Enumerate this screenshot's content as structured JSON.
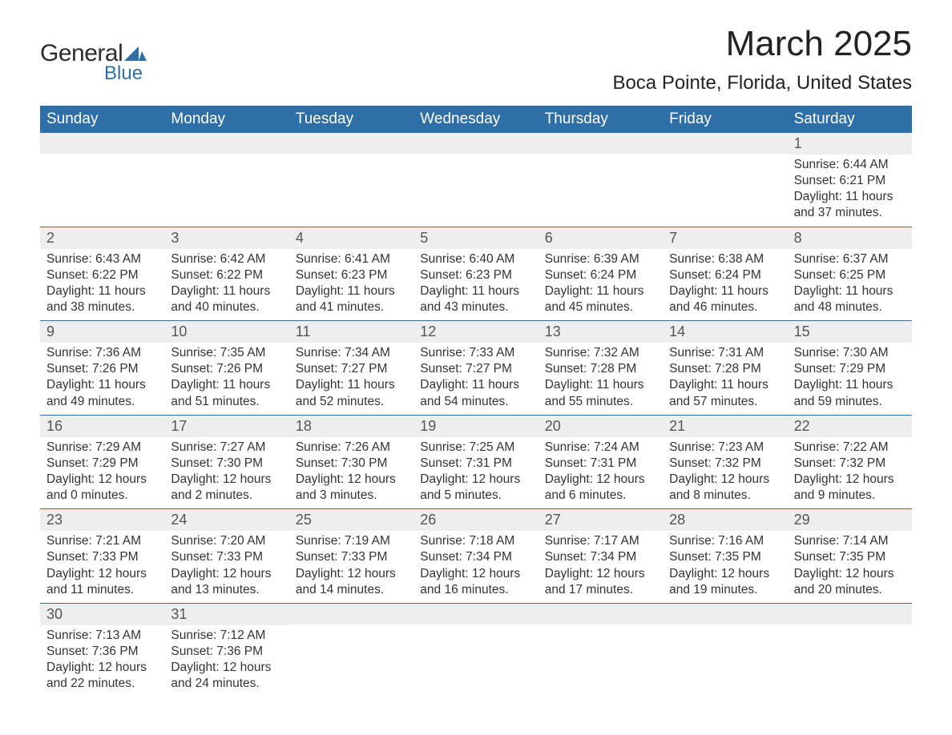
{
  "logo": {
    "text1": "General",
    "text2": "Blue",
    "mark_color": "#2f6fa7"
  },
  "title": "March 2025",
  "location": "Boca Pointe, Florida, United States",
  "weekdays": [
    "Sunday",
    "Monday",
    "Tuesday",
    "Wednesday",
    "Thursday",
    "Friday",
    "Saturday"
  ],
  "colors": {
    "header_bg": "#2f6fa7",
    "header_text": "#ffffff",
    "daynum_bg": "#eeeeee",
    "text": "#333333",
    "border": "#2f6fa7"
  },
  "weeks": [
    [
      {
        "day": "",
        "sunrise": "",
        "sunset": "",
        "daylight1": "",
        "daylight2": ""
      },
      {
        "day": "",
        "sunrise": "",
        "sunset": "",
        "daylight1": "",
        "daylight2": ""
      },
      {
        "day": "",
        "sunrise": "",
        "sunset": "",
        "daylight1": "",
        "daylight2": ""
      },
      {
        "day": "",
        "sunrise": "",
        "sunset": "",
        "daylight1": "",
        "daylight2": ""
      },
      {
        "day": "",
        "sunrise": "",
        "sunset": "",
        "daylight1": "",
        "daylight2": ""
      },
      {
        "day": "",
        "sunrise": "",
        "sunset": "",
        "daylight1": "",
        "daylight2": ""
      },
      {
        "day": "1",
        "sunrise": "Sunrise: 6:44 AM",
        "sunset": "Sunset: 6:21 PM",
        "daylight1": "Daylight: 11 hours",
        "daylight2": "and 37 minutes."
      }
    ],
    [
      {
        "day": "2",
        "sunrise": "Sunrise: 6:43 AM",
        "sunset": "Sunset: 6:22 PM",
        "daylight1": "Daylight: 11 hours",
        "daylight2": "and 38 minutes."
      },
      {
        "day": "3",
        "sunrise": "Sunrise: 6:42 AM",
        "sunset": "Sunset: 6:22 PM",
        "daylight1": "Daylight: 11 hours",
        "daylight2": "and 40 minutes."
      },
      {
        "day": "4",
        "sunrise": "Sunrise: 6:41 AM",
        "sunset": "Sunset: 6:23 PM",
        "daylight1": "Daylight: 11 hours",
        "daylight2": "and 41 minutes."
      },
      {
        "day": "5",
        "sunrise": "Sunrise: 6:40 AM",
        "sunset": "Sunset: 6:23 PM",
        "daylight1": "Daylight: 11 hours",
        "daylight2": "and 43 minutes."
      },
      {
        "day": "6",
        "sunrise": "Sunrise: 6:39 AM",
        "sunset": "Sunset: 6:24 PM",
        "daylight1": "Daylight: 11 hours",
        "daylight2": "and 45 minutes."
      },
      {
        "day": "7",
        "sunrise": "Sunrise: 6:38 AM",
        "sunset": "Sunset: 6:24 PM",
        "daylight1": "Daylight: 11 hours",
        "daylight2": "and 46 minutes."
      },
      {
        "day": "8",
        "sunrise": "Sunrise: 6:37 AM",
        "sunset": "Sunset: 6:25 PM",
        "daylight1": "Daylight: 11 hours",
        "daylight2": "and 48 minutes."
      }
    ],
    [
      {
        "day": "9",
        "sunrise": "Sunrise: 7:36 AM",
        "sunset": "Sunset: 7:26 PM",
        "daylight1": "Daylight: 11 hours",
        "daylight2": "and 49 minutes."
      },
      {
        "day": "10",
        "sunrise": "Sunrise: 7:35 AM",
        "sunset": "Sunset: 7:26 PM",
        "daylight1": "Daylight: 11 hours",
        "daylight2": "and 51 minutes."
      },
      {
        "day": "11",
        "sunrise": "Sunrise: 7:34 AM",
        "sunset": "Sunset: 7:27 PM",
        "daylight1": "Daylight: 11 hours",
        "daylight2": "and 52 minutes."
      },
      {
        "day": "12",
        "sunrise": "Sunrise: 7:33 AM",
        "sunset": "Sunset: 7:27 PM",
        "daylight1": "Daylight: 11 hours",
        "daylight2": "and 54 minutes."
      },
      {
        "day": "13",
        "sunrise": "Sunrise: 7:32 AM",
        "sunset": "Sunset: 7:28 PM",
        "daylight1": "Daylight: 11 hours",
        "daylight2": "and 55 minutes."
      },
      {
        "day": "14",
        "sunrise": "Sunrise: 7:31 AM",
        "sunset": "Sunset: 7:28 PM",
        "daylight1": "Daylight: 11 hours",
        "daylight2": "and 57 minutes."
      },
      {
        "day": "15",
        "sunrise": "Sunrise: 7:30 AM",
        "sunset": "Sunset: 7:29 PM",
        "daylight1": "Daylight: 11 hours",
        "daylight2": "and 59 minutes."
      }
    ],
    [
      {
        "day": "16",
        "sunrise": "Sunrise: 7:29 AM",
        "sunset": "Sunset: 7:29 PM",
        "daylight1": "Daylight: 12 hours",
        "daylight2": "and 0 minutes."
      },
      {
        "day": "17",
        "sunrise": "Sunrise: 7:27 AM",
        "sunset": "Sunset: 7:30 PM",
        "daylight1": "Daylight: 12 hours",
        "daylight2": "and 2 minutes."
      },
      {
        "day": "18",
        "sunrise": "Sunrise: 7:26 AM",
        "sunset": "Sunset: 7:30 PM",
        "daylight1": "Daylight: 12 hours",
        "daylight2": "and 3 minutes."
      },
      {
        "day": "19",
        "sunrise": "Sunrise: 7:25 AM",
        "sunset": "Sunset: 7:31 PM",
        "daylight1": "Daylight: 12 hours",
        "daylight2": "and 5 minutes."
      },
      {
        "day": "20",
        "sunrise": "Sunrise: 7:24 AM",
        "sunset": "Sunset: 7:31 PM",
        "daylight1": "Daylight: 12 hours",
        "daylight2": "and 6 minutes."
      },
      {
        "day": "21",
        "sunrise": "Sunrise: 7:23 AM",
        "sunset": "Sunset: 7:32 PM",
        "daylight1": "Daylight: 12 hours",
        "daylight2": "and 8 minutes."
      },
      {
        "day": "22",
        "sunrise": "Sunrise: 7:22 AM",
        "sunset": "Sunset: 7:32 PM",
        "daylight1": "Daylight: 12 hours",
        "daylight2": "and 9 minutes."
      }
    ],
    [
      {
        "day": "23",
        "sunrise": "Sunrise: 7:21 AM",
        "sunset": "Sunset: 7:33 PM",
        "daylight1": "Daylight: 12 hours",
        "daylight2": "and 11 minutes."
      },
      {
        "day": "24",
        "sunrise": "Sunrise: 7:20 AM",
        "sunset": "Sunset: 7:33 PM",
        "daylight1": "Daylight: 12 hours",
        "daylight2": "and 13 minutes."
      },
      {
        "day": "25",
        "sunrise": "Sunrise: 7:19 AM",
        "sunset": "Sunset: 7:33 PM",
        "daylight1": "Daylight: 12 hours",
        "daylight2": "and 14 minutes."
      },
      {
        "day": "26",
        "sunrise": "Sunrise: 7:18 AM",
        "sunset": "Sunset: 7:34 PM",
        "daylight1": "Daylight: 12 hours",
        "daylight2": "and 16 minutes."
      },
      {
        "day": "27",
        "sunrise": "Sunrise: 7:17 AM",
        "sunset": "Sunset: 7:34 PM",
        "daylight1": "Daylight: 12 hours",
        "daylight2": "and 17 minutes."
      },
      {
        "day": "28",
        "sunrise": "Sunrise: 7:16 AM",
        "sunset": "Sunset: 7:35 PM",
        "daylight1": "Daylight: 12 hours",
        "daylight2": "and 19 minutes."
      },
      {
        "day": "29",
        "sunrise": "Sunrise: 7:14 AM",
        "sunset": "Sunset: 7:35 PM",
        "daylight1": "Daylight: 12 hours",
        "daylight2": "and 20 minutes."
      }
    ],
    [
      {
        "day": "30",
        "sunrise": "Sunrise: 7:13 AM",
        "sunset": "Sunset: 7:36 PM",
        "daylight1": "Daylight: 12 hours",
        "daylight2": "and 22 minutes."
      },
      {
        "day": "31",
        "sunrise": "Sunrise: 7:12 AM",
        "sunset": "Sunset: 7:36 PM",
        "daylight1": "Daylight: 12 hours",
        "daylight2": "and 24 minutes."
      },
      {
        "day": "",
        "sunrise": "",
        "sunset": "",
        "daylight1": "",
        "daylight2": ""
      },
      {
        "day": "",
        "sunrise": "",
        "sunset": "",
        "daylight1": "",
        "daylight2": ""
      },
      {
        "day": "",
        "sunrise": "",
        "sunset": "",
        "daylight1": "",
        "daylight2": ""
      },
      {
        "day": "",
        "sunrise": "",
        "sunset": "",
        "daylight1": "",
        "daylight2": ""
      },
      {
        "day": "",
        "sunrise": "",
        "sunset": "",
        "daylight1": "",
        "daylight2": ""
      }
    ]
  ]
}
